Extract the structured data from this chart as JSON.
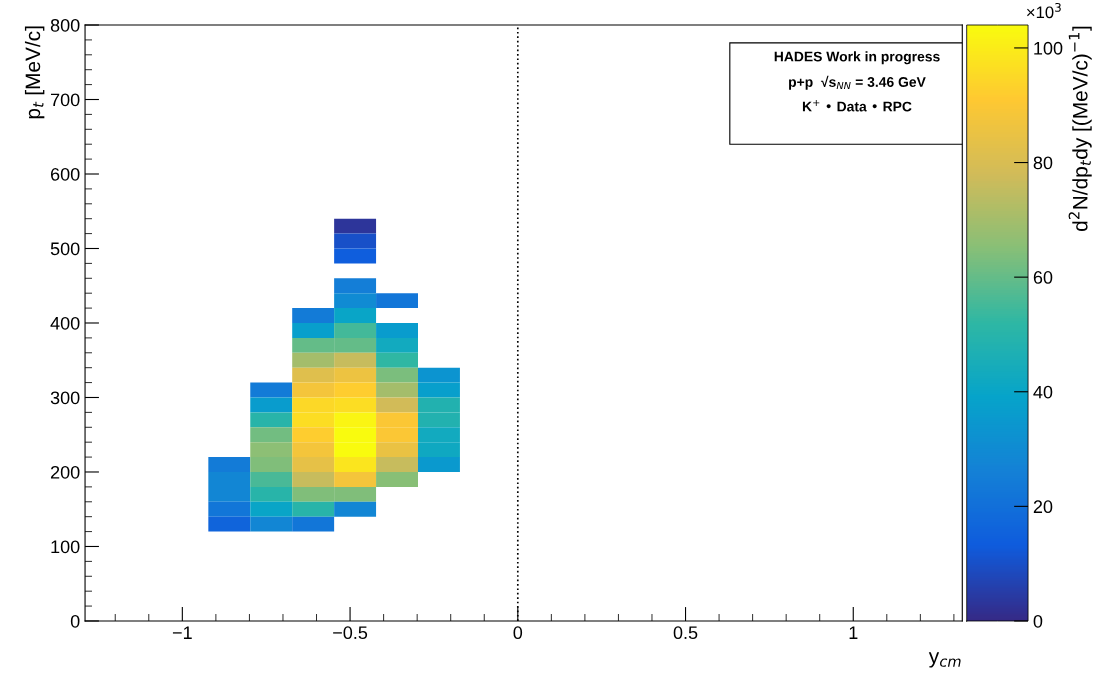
{
  "chart_data": {
    "type": "heatmap",
    "xlabel": "y$_{cm}$",
    "ylabel": "p$_{t}$ [MeV/c]",
    "clabel": "d$^{2}$N/dp$_{t}$dy [(MeV/c)$^{−1}$]",
    "annotations": [
      "×10$^{3}$",
      "HADES Work in progress",
      "p+p  √s$_{NN}$ = 3.46 GeV",
      "K$^{+}$ • Data • RPC"
    ],
    "x": [
      -0.86,
      -0.735,
      -0.61,
      -0.485,
      -0.36,
      -0.235
    ],
    "y": [
      530,
      510,
      490,
      450,
      430,
      410,
      390,
      370,
      350,
      330,
      310,
      290,
      270,
      250,
      230,
      210,
      190,
      170,
      150,
      130
    ],
    "cells": [
      [
        null,
        null,
        null,
        3,
        null,
        null
      ],
      [
        null,
        null,
        null,
        10,
        null,
        null
      ],
      [
        null,
        null,
        null,
        14,
        null,
        null
      ],
      [
        null,
        null,
        null,
        25,
        null,
        null
      ],
      [
        null,
        null,
        null,
        30,
        22,
        null
      ],
      [
        null,
        null,
        24,
        40,
        null,
        null
      ],
      [
        null,
        null,
        37,
        55,
        36,
        null
      ],
      [
        null,
        null,
        60,
        60,
        43,
        null
      ],
      [
        null,
        null,
        70,
        76,
        52,
        null
      ],
      [
        null,
        null,
        82,
        86,
        63,
        33
      ],
      [
        null,
        24,
        88,
        92,
        70,
        37
      ],
      [
        null,
        36,
        95,
        96,
        78,
        48
      ],
      [
        null,
        50,
        96,
        102,
        90,
        48
      ],
      [
        null,
        62,
        92,
        104,
        90,
        43
      ],
      [
        null,
        66,
        88,
        104,
        85,
        42
      ],
      [
        24,
        64,
        84,
        98,
        76,
        35
      ],
      [
        28,
        56,
        76,
        88,
        65,
        null
      ],
      [
        28,
        50,
        64,
        64,
        null,
        null
      ],
      [
        22,
        40,
        50,
        28,
        null,
        null
      ],
      [
        16,
        28,
        22,
        null,
        null,
        null
      ]
    ],
    "clim": [
      0,
      104
    ],
    "cticks": [
      0,
      20,
      40,
      60,
      80,
      100
    ],
    "xlim": [
      -1.29,
      1.325
    ],
    "xticks": [
      {
        "value": -1,
        "label": "−1"
      },
      {
        "value": -0.5,
        "label": "−0.5"
      },
      0,
      0.5,
      1
    ],
    "ylim": [
      0,
      800
    ],
    "yticks": [
      0,
      100,
      200,
      300,
      400,
      500,
      600,
      700,
      800
    ],
    "ref_lines": [
      {
        "axis": "x",
        "value": 0,
        "line_style": "dotted",
        "color": "#000000"
      }
    ],
    "grid": false
  }
}
